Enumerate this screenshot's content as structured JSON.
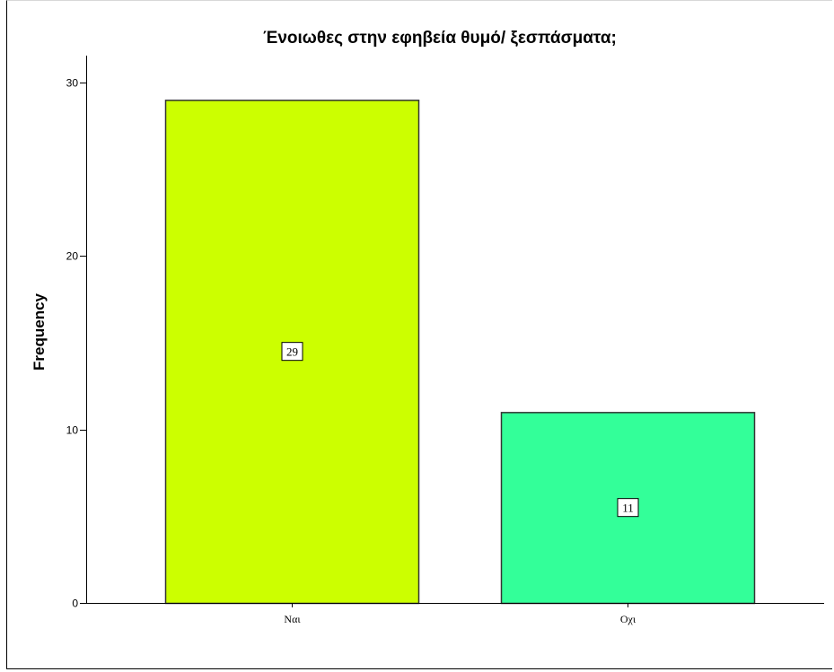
{
  "chart_data": {
    "type": "bar",
    "title": "Ένοιωθες στην εφηβεία θυμό/ ξεσπάσματα;",
    "xlabel": "",
    "ylabel": "Frequency",
    "categories": [
      "Ναι",
      "Οχι"
    ],
    "values": [
      29,
      11
    ],
    "data_labels": [
      "29",
      "11"
    ],
    "ylim": [
      0,
      30
    ],
    "yticks": [
      "0",
      "10",
      "20",
      "30"
    ],
    "colors": [
      "#ccff00",
      "#33ff99"
    ],
    "grid": false,
    "legend": "none"
  }
}
